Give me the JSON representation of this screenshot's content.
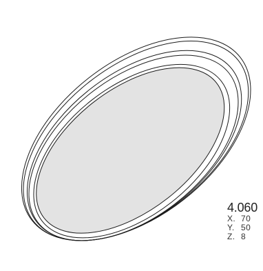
{
  "product": {
    "code": "4.060",
    "dimensions": [
      {
        "axis": "X.",
        "value": "70"
      },
      {
        "axis": "Y.",
        "value": "50"
      },
      {
        "axis": "Z.",
        "value": "8"
      }
    ]
  },
  "colors": {
    "outline": "#1a1a1a",
    "inner_fill": "#e3e3e3",
    "text": "#222222"
  }
}
